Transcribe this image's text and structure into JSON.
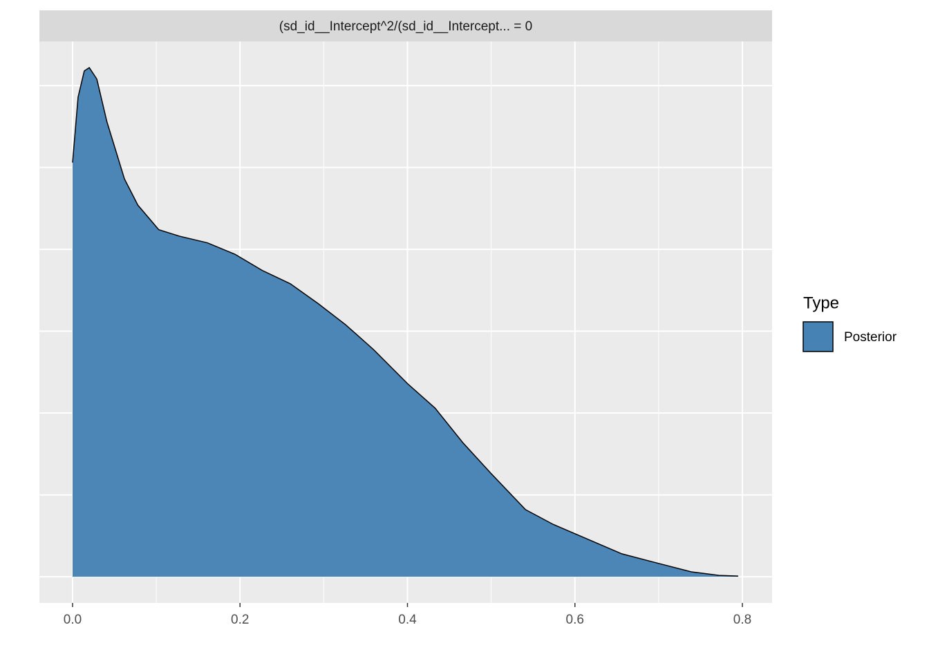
{
  "chart_data": {
    "type": "area",
    "strip_title": "(sd_id__Intercept^2/(sd_id__Intercept... = 0",
    "x": [
      0,
      0.0066,
      0.014,
      0.02,
      0.029,
      0.041,
      0.062,
      0.078,
      0.103,
      0.128,
      0.161,
      0.194,
      0.227,
      0.26,
      0.293,
      0.326,
      0.359,
      0.4,
      0.433,
      0.466,
      0.5,
      0.541,
      0.574,
      0.615,
      0.656,
      0.698,
      0.739,
      0.772,
      0.795
    ],
    "series": [
      {
        "name": "Posterior",
        "color": "#4682B4",
        "values": [
          2.53,
          2.93,
          3.09,
          3.11,
          3.04,
          2.78,
          2.43,
          2.27,
          2.12,
          2.08,
          2.04,
          1.97,
          1.87,
          1.79,
          1.67,
          1.54,
          1.39,
          1.18,
          1.03,
          0.82,
          0.63,
          0.41,
          0.32,
          0.23,
          0.14,
          0.084,
          0.03,
          0.008,
          0.004
        ]
      }
    ],
    "legend_title": "Type",
    "legend_position": "right",
    "xlim": [
      -0.0396,
      0.8355
    ],
    "xticks": [
      {
        "value": 0,
        "label": "0.0"
      },
      0.2,
      0.4,
      0.6,
      0.8
    ],
    "xminor": [
      0.1,
      0.3,
      0.5,
      0.7
    ],
    "ylim": [
      -0.16,
      3.27
    ],
    "yticks": [
      0,
      0.5,
      1,
      1.5,
      2,
      2.5,
      3
    ],
    "y_tick_labels": false,
    "grid": true
  }
}
